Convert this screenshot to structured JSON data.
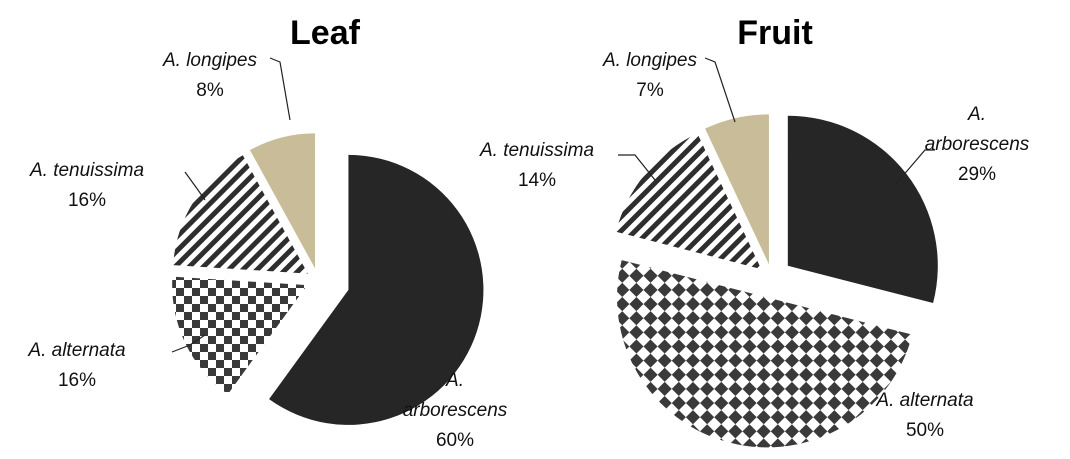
{
  "chart_data": [
    {
      "type": "pie",
      "title": "Leaf",
      "categories": [
        "A. arborescens",
        "A. alternata",
        "A. tenuissima",
        "A. longipes"
      ],
      "values": [
        60,
        16,
        16,
        8
      ],
      "value_labels": [
        "60%",
        "16%",
        "16%",
        "8%"
      ],
      "colors": [
        "#262626",
        "#404040",
        "#404040",
        "#c8bd98"
      ],
      "patterns": [
        "solid",
        "checker",
        "stripes",
        "solid"
      ]
    },
    {
      "type": "pie",
      "title": "Fruit",
      "categories": [
        "A. arborescens",
        "A. alternata",
        "A. tenuissima",
        "A. longipes"
      ],
      "values": [
        29,
        50,
        14,
        7
      ],
      "value_labels": [
        "29%",
        "50%",
        "14%",
        "7%"
      ],
      "colors": [
        "#262626",
        "#404040",
        "#404040",
        "#c8bd98"
      ],
      "patterns": [
        "solid",
        "checker",
        "stripes",
        "solid"
      ]
    }
  ]
}
